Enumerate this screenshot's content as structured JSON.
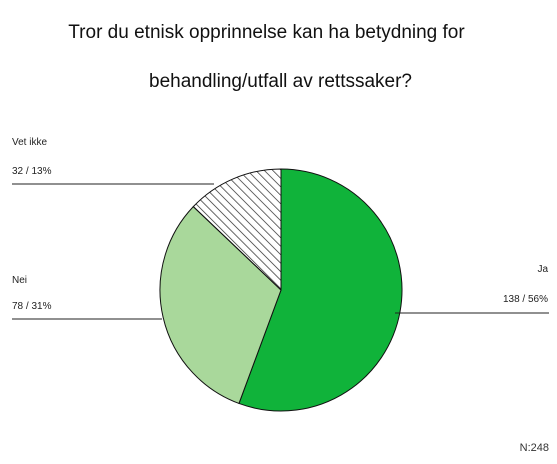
{
  "title_lines": [
    "Tror du etnisk opprinnelse kan ha betydning for",
    "behandling/utfall av rettssaker?"
  ],
  "note": "N:248",
  "colors": {
    "ja": "#10b33a",
    "nei": "#a9d89b",
    "vet_ikke": "#ffffff",
    "outline": "#111111",
    "hatch": "#222222"
  },
  "chart_data": {
    "type": "pie",
    "title": "Tror du etnisk opprinnelse kan ha betydning for behandling/utfall av rettssaker?",
    "categories": [
      "Ja",
      "Nei",
      "Vet ikke"
    ],
    "values": [
      138,
      78,
      32
    ],
    "labels": [
      "138 / 56%",
      "78 / 31%",
      "32 / 13%"
    ],
    "note": "N:248"
  }
}
